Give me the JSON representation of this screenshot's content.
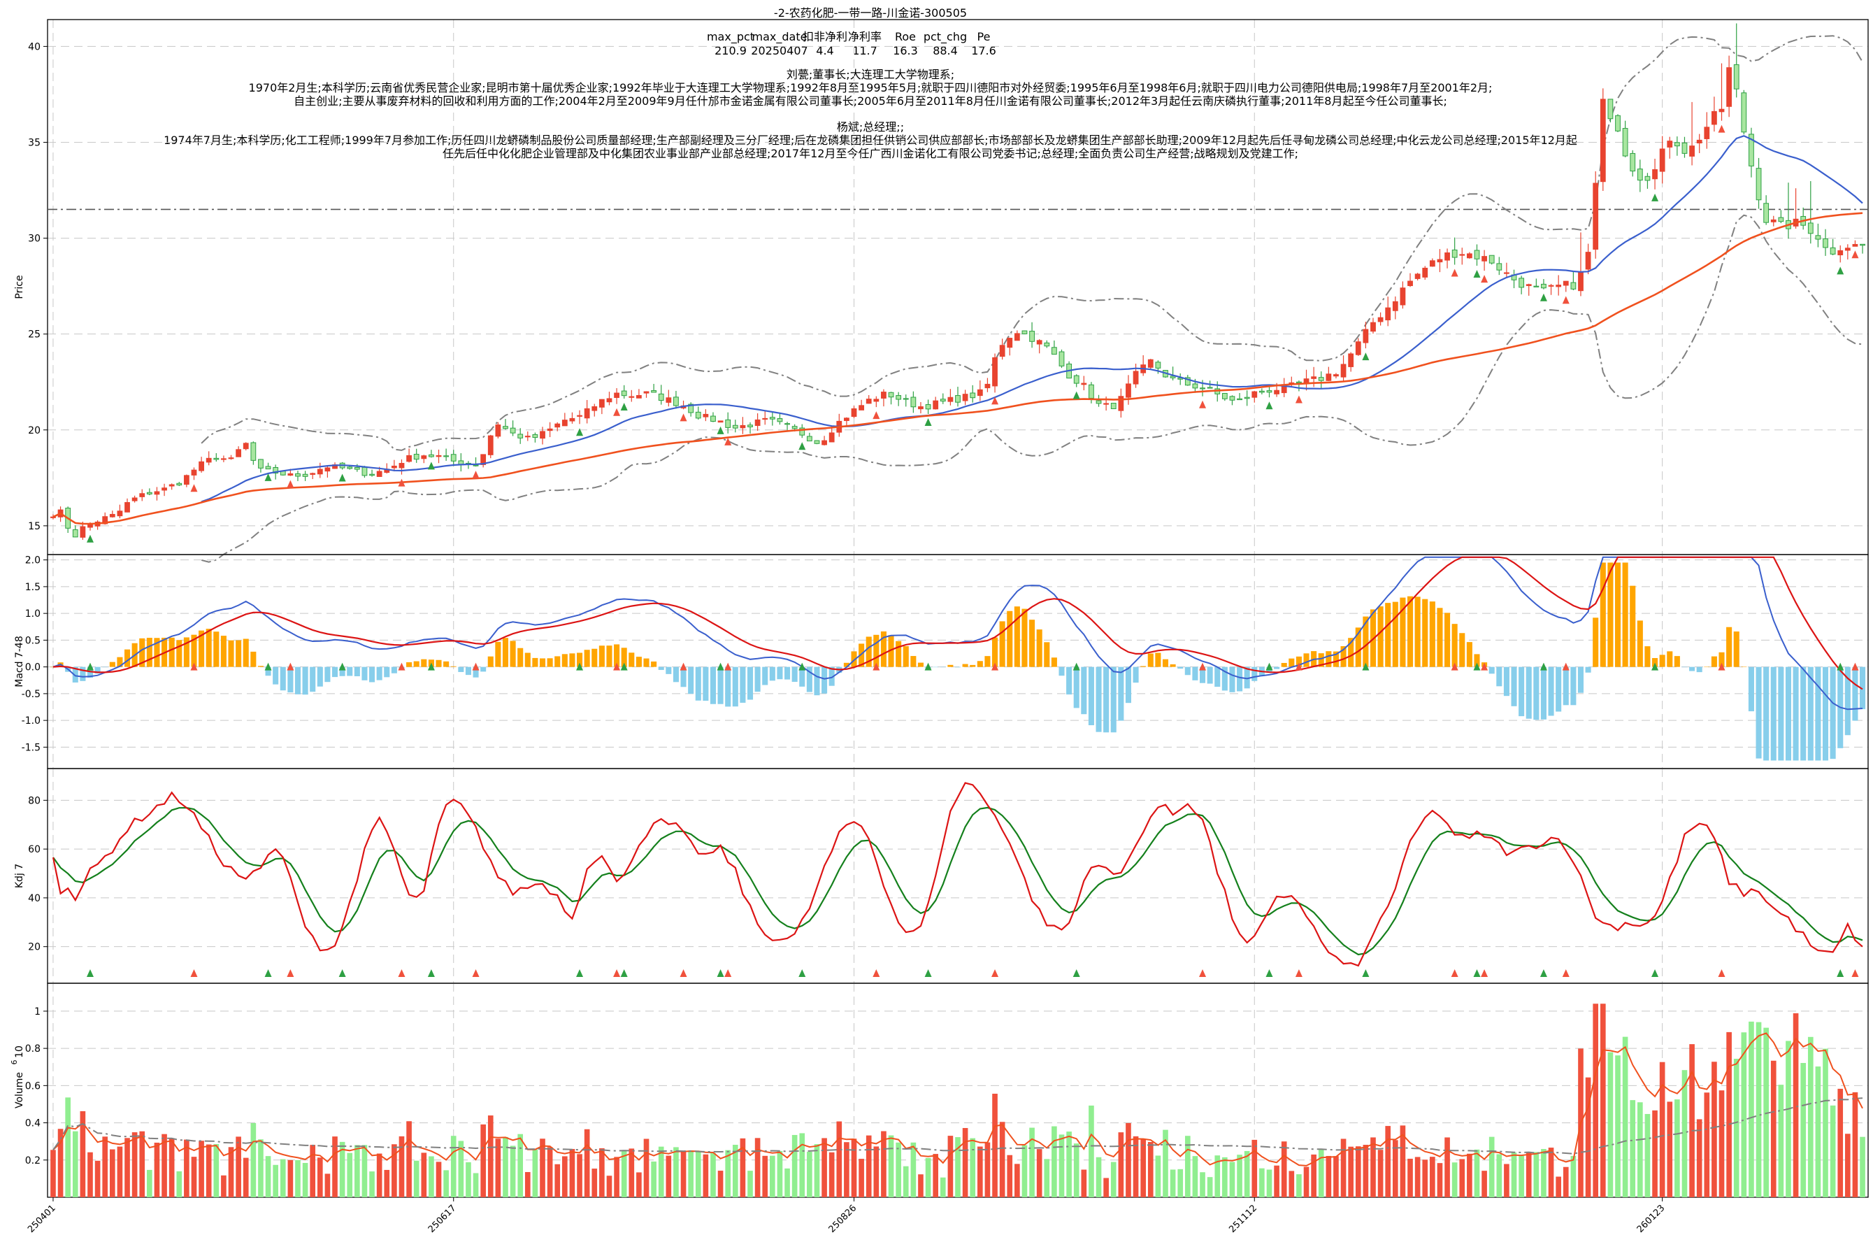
{
  "chart_data": {
    "type": "candlestick-multi-panel",
    "title": "-2-农药化肥-一带一路-川金诺-300505",
    "stats": {
      "headers": [
        "max_pct",
        "max_date",
        "扣非净利",
        "净利率",
        "Roe",
        "pct_chg",
        "Pe"
      ],
      "values": [
        "210.9",
        "20250407",
        "4.4",
        "11.7",
        "16.3",
        "88.4",
        "17.6"
      ]
    },
    "info_lines": [
      "刘甍;董事长;大连理工大学物理系;",
      "1970年2月生;本科学历;云南省优秀民营企业家;昆明市第十届优秀企业家;1992年毕业于大连理工大学物理系;1992年8月至1995年5月;就职于四川德阳市对外经贸委;1995年6月至1998年6月;就职于四川电力公司德阳供电局;1998年7月至2001年2月;",
      "自主创业;主要从事废弃材料的回收和利用方面的工作;2004年2月至2009年9月任什邡市金诺金属有限公司董事长;2005年6月至2011年8月任川金诺有限公司董事长;2012年3月起任云南庆磷执行董事;2011年8月起至今任公司董事长;",
      "杨斌;总经理;;",
      "1974年7月生;本科学历;化工工程师;1999年7月参加工作;历任四川龙蟒磷制品股份公司质量部经理;生产部副经理及三分厂经理;后在龙磷集团担任供销公司供应部部长;市场部部长及龙蟒集团生产部部长助理;2009年12月起先后任寻甸龙磷公司总经理;中化云龙公司总经理;2015年12月起",
      "任先后任中化化肥企业管理部及中化集团农业事业部产业部总经理;2017年12月至今任广西川金诺化工有限公司党委书记;总经理;全面负责公司生产经营;战略规划及党建工作;"
    ],
    "x_tick_labels": [
      "250401",
      "250617",
      "250826",
      "251112",
      "260123"
    ],
    "n_bars": 245,
    "panels": {
      "price": {
        "ylabel": "Price",
        "yticks": [
          15,
          20,
          25,
          30,
          35,
          40
        ],
        "ylim": [
          13.5,
          41.4
        ],
        "ref_line": 31.5
      },
      "macd": {
        "ylabel": "Macd 7-48",
        "yticks": [
          -1.5,
          -1.0,
          -0.5,
          0.0,
          0.5,
          1.0,
          1.5,
          2.0
        ],
        "ylim": [
          -1.9,
          2.1
        ]
      },
      "kdj": {
        "ylabel": "Kdj 7",
        "yticks": [
          20,
          40,
          60,
          80
        ],
        "ylim": [
          5,
          93
        ]
      },
      "volume": {
        "ylabel": "Volume",
        "ylabel_exp": "6",
        "yticks": [
          0.2,
          0.4,
          0.6,
          0.8,
          1.0
        ],
        "ylim": [
          0,
          1.15
        ]
      }
    },
    "price_anchors": [
      [
        0,
        15.6
      ],
      [
        3,
        15.8
      ],
      [
        4,
        14.0
      ],
      [
        6,
        14.8
      ],
      [
        12,
        15.4
      ],
      [
        15,
        15.6
      ],
      [
        18,
        16.3
      ],
      [
        22,
        16.7
      ],
      [
        26,
        16.9
      ],
      [
        30,
        17.3
      ],
      [
        34,
        18.1
      ],
      [
        38,
        18.6
      ],
      [
        42,
        18.4
      ],
      [
        45,
        19.4
      ],
      [
        48,
        17.9
      ],
      [
        52,
        17.8
      ],
      [
        56,
        17.6
      ],
      [
        60,
        17.7
      ],
      [
        64,
        18.1
      ],
      [
        68,
        18.0
      ],
      [
        72,
        17.8
      ],
      [
        75,
        17.7
      ],
      [
        79,
        18.0
      ],
      [
        83,
        18.5
      ],
      [
        87,
        18.7
      ],
      [
        91,
        18.6
      ],
      [
        95,
        18.3
      ],
      [
        100,
        18.2
      ],
      [
        104,
        20.4
      ],
      [
        108,
        19.8
      ],
      [
        112,
        19.5
      ],
      [
        116,
        19.9
      ],
      [
        120,
        20.5
      ],
      [
        124,
        20.7
      ],
      [
        128,
        21.4
      ],
      [
        132,
        21.9
      ],
      [
        136,
        21.8
      ],
      [
        140,
        21.9
      ],
      [
        144,
        21.6
      ],
      [
        148,
        21.3
      ],
      [
        152,
        20.7
      ],
      [
        156,
        20.5
      ],
      [
        160,
        20.1
      ],
      [
        164,
        20.3
      ],
      [
        168,
        20.5
      ],
      [
        172,
        20.2
      ],
      [
        176,
        19.8
      ],
      [
        180,
        19.3
      ],
      [
        184,
        20.3
      ],
      [
        188,
        21.0
      ],
      [
        192,
        21.6
      ],
      [
        196,
        21.9
      ],
      [
        200,
        21.5
      ],
      [
        204,
        21.2
      ],
      [
        208,
        21.4
      ],
      [
        212,
        21.6
      ],
      [
        216,
        21.8
      ],
      [
        219,
        22.0
      ],
      [
        222,
        24.3
      ],
      [
        226,
        25.2
      ],
      [
        230,
        24.8
      ],
      [
        234,
        24.2
      ],
      [
        238,
        23.0
      ],
      [
        242,
        22.3
      ],
      [
        246,
        21.2
      ],
      [
        250,
        21.3
      ],
      [
        254,
        22.8
      ],
      [
        258,
        23.6
      ],
      [
        262,
        22.7
      ],
      [
        266,
        22.4
      ],
      [
        270,
        22.2
      ],
      [
        274,
        21.8
      ],
      [
        278,
        21.4
      ],
      [
        282,
        21.9
      ],
      [
        286,
        22.1
      ],
      [
        290,
        22.2
      ],
      [
        294,
        22.5
      ],
      [
        298,
        22.7
      ],
      [
        302,
        23.1
      ],
      [
        306,
        24.3
      ],
      [
        310,
        25.6
      ],
      [
        314,
        26.5
      ],
      [
        318,
        27.6
      ],
      [
        322,
        28.4
      ],
      [
        326,
        29.0
      ],
      [
        330,
        29.3
      ],
      [
        334,
        29.1
      ],
      [
        338,
        28.8
      ],
      [
        342,
        28.0
      ],
      [
        346,
        27.5
      ],
      [
        350,
        27.2
      ],
      [
        354,
        27.5
      ],
      [
        358,
        27.6
      ],
      [
        361,
        29.5
      ],
      [
        364,
        37.0
      ],
      [
        367,
        36.2
      ],
      [
        370,
        34.0
      ],
      [
        373,
        33.2
      ],
      [
        376,
        33.4
      ],
      [
        380,
        35.4
      ],
      [
        384,
        34.4
      ],
      [
        388,
        35.7
      ],
      [
        392,
        36.8
      ],
      [
        394,
        39.2
      ],
      [
        398,
        34.6
      ],
      [
        402,
        31.0
      ],
      [
        406,
        30.6
      ],
      [
        410,
        30.8
      ],
      [
        414,
        30.3
      ],
      [
        417,
        29.2
      ],
      [
        420,
        29.6
      ],
      [
        425,
        29.6
      ]
    ],
    "kdj_anchors": [
      [
        0,
        57
      ],
      [
        2,
        43
      ],
      [
        4,
        46
      ],
      [
        6,
        40
      ],
      [
        10,
        50
      ],
      [
        15,
        58
      ],
      [
        20,
        68
      ],
      [
        25,
        74
      ],
      [
        30,
        79
      ],
      [
        33,
        82
      ],
      [
        36,
        79
      ],
      [
        40,
        70
      ],
      [
        44,
        60
      ],
      [
        48,
        52
      ],
      [
        52,
        48
      ],
      [
        56,
        50
      ],
      [
        60,
        60
      ],
      [
        63,
        57
      ],
      [
        66,
        40
      ],
      [
        70,
        26
      ],
      [
        74,
        18
      ],
      [
        78,
        22
      ],
      [
        82,
        44
      ],
      [
        86,
        63
      ],
      [
        89,
        72
      ],
      [
        92,
        65
      ],
      [
        95,
        50
      ],
      [
        98,
        37
      ],
      [
        101,
        42
      ],
      [
        104,
        62
      ],
      [
        107,
        77
      ],
      [
        110,
        80
      ],
      [
        114,
        72
      ],
      [
        118,
        60
      ],
      [
        122,
        47
      ],
      [
        126,
        42
      ],
      [
        130,
        45
      ],
      [
        134,
        46
      ],
      [
        138,
        40
      ],
      [
        142,
        31
      ],
      [
        146,
        55
      ],
      [
        150,
        57
      ],
      [
        154,
        45
      ],
      [
        158,
        57
      ],
      [
        162,
        67
      ],
      [
        166,
        71
      ],
      [
        170,
        69
      ],
      [
        174,
        62
      ],
      [
        178,
        57
      ],
      [
        182,
        60
      ],
      [
        186,
        52
      ],
      [
        190,
        36
      ],
      [
        194,
        25
      ],
      [
        198,
        24
      ],
      [
        202,
        23
      ],
      [
        206,
        34
      ],
      [
        210,
        50
      ],
      [
        214,
        64
      ],
      [
        218,
        72
      ],
      [
        222,
        68
      ],
      [
        226,
        50
      ],
      [
        230,
        32
      ],
      [
        234,
        24
      ],
      [
        238,
        30
      ],
      [
        242,
        58
      ],
      [
        246,
        80
      ],
      [
        250,
        89
      ],
      [
        254,
        80
      ],
      [
        258,
        73
      ],
      [
        262,
        60
      ],
      [
        266,
        44
      ],
      [
        270,
        32
      ],
      [
        274,
        26
      ],
      [
        278,
        30
      ],
      [
        282,
        50
      ],
      [
        286,
        56
      ],
      [
        290,
        47
      ],
      [
        294,
        56
      ],
      [
        298,
        70
      ],
      [
        302,
        78
      ],
      [
        306,
        74
      ],
      [
        310,
        80
      ],
      [
        314,
        72
      ],
      [
        318,
        50
      ],
      [
        322,
        32
      ],
      [
        326,
        20
      ],
      [
        330,
        28
      ],
      [
        334,
        39
      ],
      [
        338,
        42
      ],
      [
        342,
        34
      ],
      [
        346,
        22
      ],
      [
        350,
        15
      ],
      [
        354,
        11
      ],
      [
        358,
        16
      ],
      [
        362,
        30
      ],
      [
        366,
        42
      ],
      [
        370,
        60
      ],
      [
        374,
        72
      ],
      [
        378,
        76
      ],
      [
        382,
        67
      ],
      [
        386,
        63
      ],
      [
        390,
        67
      ],
      [
        394,
        62
      ],
      [
        398,
        58
      ],
      [
        402,
        60
      ],
      [
        406,
        63
      ],
      [
        410,
        65
      ],
      [
        414,
        60
      ],
      [
        418,
        44
      ],
      [
        422,
        30
      ],
      [
        426,
        28
      ],
      [
        430,
        30
      ],
      [
        434,
        29
      ],
      [
        438,
        33
      ],
      [
        442,
        50
      ],
      [
        446,
        67
      ],
      [
        450,
        71
      ],
      [
        454,
        63
      ],
      [
        458,
        45
      ],
      [
        462,
        42
      ],
      [
        466,
        43
      ],
      [
        470,
        35
      ],
      [
        474,
        31
      ],
      [
        478,
        24
      ],
      [
        482,
        17
      ],
      [
        486,
        17
      ],
      [
        490,
        28
      ],
      [
        494,
        20
      ]
    ],
    "legend": [],
    "signal_markers": "red/green triangles at trading signals"
  },
  "colors": {
    "up": "#f0513c",
    "down": "#2ea043",
    "up_candle": "#e8432f",
    "down_candle_fill": "#a8e6a0",
    "ma_fast": "#3a5fcd",
    "ma_slow": "#f0511e",
    "bollinger": "#808080",
    "macd_pos": "#ffa500",
    "macd_neg": "#87ceeb",
    "dif": "#3a5fcd",
    "dea": "#dc1414",
    "k_line": "#dc1414",
    "d_line": "#14801c",
    "vol_up": "#f0513c",
    "vol_down": "#90ee90",
    "vol_ma": "#f0511e",
    "vol_ma_long": "#808080"
  }
}
